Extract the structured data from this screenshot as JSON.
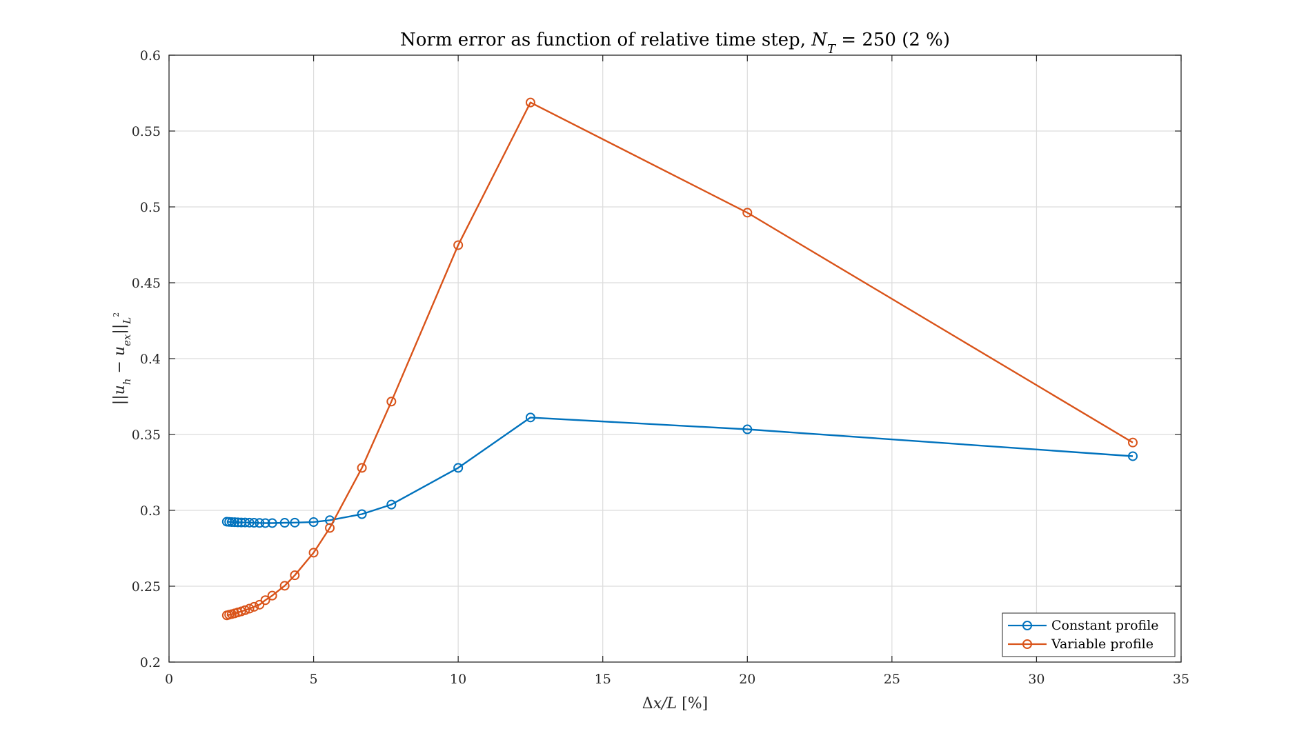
{
  "chart_data": {
    "type": "line",
    "title": {
      "prefix": "Norm error as function of relative time step, ",
      "var": "N",
      "sub": "T",
      "suffix": " = 250 (2 %)"
    },
    "xlabel": {
      "delta": "Δ",
      "var": "x/L",
      "unit": " [%]"
    },
    "ylabel": {
      "open": "||",
      "u1": "u",
      "s1": "h",
      "minus": " − ",
      "u2": "u",
      "s2": "ex",
      "close": "||",
      "s3": "L",
      "s3sup": "2"
    },
    "xlim": [
      0,
      35
    ],
    "ylim": [
      0.2,
      0.6
    ],
    "xticks": [
      0,
      5,
      10,
      15,
      20,
      25,
      30,
      35
    ],
    "xtick_labels": [
      "0",
      "5",
      "10",
      "15",
      "20",
      "25",
      "30",
      "35"
    ],
    "yticks": [
      0.2,
      0.25,
      0.3,
      0.35,
      0.4,
      0.45,
      0.5,
      0.55,
      0.6
    ],
    "ytick_labels": [
      "0.2",
      "0.25",
      "0.3",
      "0.35",
      "0.4",
      "0.45",
      "0.5",
      "0.55",
      "0.6"
    ],
    "grid": true,
    "legend_position": "bottom-right",
    "series": [
      {
        "name": "Constant profile",
        "color": "#0072BD",
        "marker": "circle",
        "x": [
          2.0,
          2.08,
          2.17,
          2.27,
          2.38,
          2.5,
          2.63,
          2.78,
          2.94,
          3.13,
          3.33,
          3.57,
          4.0,
          4.35,
          5.0,
          5.56,
          6.67,
          7.69,
          10.0,
          12.5,
          20.0,
          33.33
        ],
        "y": [
          0.2925,
          0.2924,
          0.2923,
          0.2922,
          0.2921,
          0.292,
          0.292,
          0.2919,
          0.2918,
          0.2917,
          0.2916,
          0.2916,
          0.2918,
          0.2919,
          0.2923,
          0.2935,
          0.2975,
          0.3038,
          0.328,
          0.3612,
          0.3534,
          0.3357
        ]
      },
      {
        "name": "Variable profile",
        "color": "#D95319",
        "marker": "circle",
        "x": [
          2.0,
          2.08,
          2.17,
          2.27,
          2.38,
          2.5,
          2.63,
          2.78,
          2.94,
          3.13,
          3.33,
          3.57,
          4.0,
          4.35,
          5.0,
          5.56,
          6.67,
          7.69,
          10.0,
          12.5,
          20.0,
          33.33
        ],
        "y": [
          0.2308,
          0.2312,
          0.2316,
          0.2321,
          0.2327,
          0.2334,
          0.2342,
          0.2352,
          0.2364,
          0.2378,
          0.2408,
          0.2438,
          0.2503,
          0.2572,
          0.2721,
          0.2884,
          0.328,
          0.3717,
          0.4748,
          0.5688,
          0.4962,
          0.3447
        ]
      }
    ]
  }
}
